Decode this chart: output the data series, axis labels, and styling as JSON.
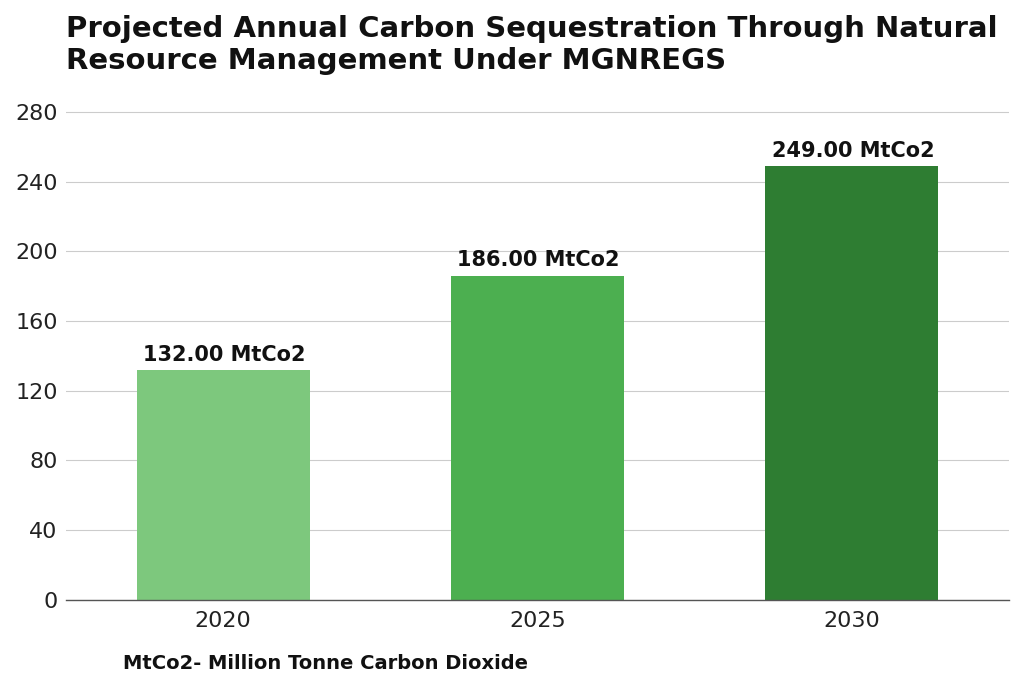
{
  "title": "Projected Annual Carbon Sequestration Through Natural\nResource Management Under MGNREGS",
  "categories": [
    "2020",
    "2025",
    "2030"
  ],
  "values": [
    132.0,
    186.0,
    249.0
  ],
  "bar_colors": [
    "#7DC87D",
    "#4CAF50",
    "#2E7D32"
  ],
  "bar_labels": [
    "132.00 MtCo2",
    "186.00 MtCo2",
    "249.00 MtCo2"
  ],
  "ylim": [
    0,
    290
  ],
  "yticks": [
    0,
    40,
    80,
    120,
    160,
    200,
    240,
    280
  ],
  "footnote": "MtCo2- Million Tonne Carbon Dioxide",
  "background_color": "#ffffff",
  "title_fontsize": 21,
  "tick_fontsize": 16,
  "label_fontsize": 15,
  "footnote_fontsize": 14,
  "bar_width": 0.55
}
